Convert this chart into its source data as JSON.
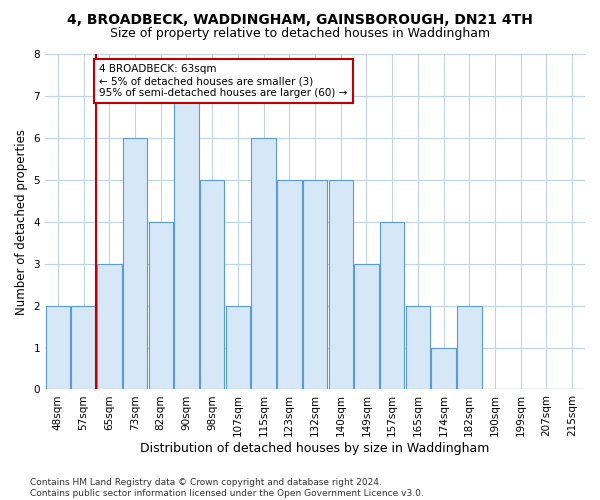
{
  "title": "4, BROADBECK, WADDINGHAM, GAINSBOROUGH, DN21 4TH",
  "subtitle": "Size of property relative to detached houses in Waddingham",
  "xlabel": "Distribution of detached houses by size in Waddingham",
  "ylabel": "Number of detached properties",
  "categories": [
    "48sqm",
    "57sqm",
    "65sqm",
    "73sqm",
    "82sqm",
    "90sqm",
    "98sqm",
    "107sqm",
    "115sqm",
    "123sqm",
    "132sqm",
    "140sqm",
    "149sqm",
    "157sqm",
    "165sqm",
    "174sqm",
    "182sqm",
    "190sqm",
    "199sqm",
    "207sqm",
    "215sqm"
  ],
  "values": [
    2,
    2,
    3,
    6,
    4,
    7,
    5,
    2,
    6,
    5,
    5,
    5,
    3,
    4,
    2,
    1,
    2,
    0,
    0,
    0,
    0
  ],
  "red_line_x": 1.5,
  "highlight_color": "#c00000",
  "bar_color": "#d6e8f7",
  "bar_edge_color": "#5b9bd5",
  "annotation_text": "4 BROADBECK: 63sqm\n← 5% of detached houses are smaller (3)\n95% of semi-detached houses are larger (60) →",
  "annotation_box_color": "#ffffff",
  "annotation_box_edge_color": "#c00000",
  "footer": "Contains HM Land Registry data © Crown copyright and database right 2024.\nContains public sector information licensed under the Open Government Licence v3.0.",
  "ylim": [
    0,
    8
  ],
  "yticks": [
    0,
    1,
    2,
    3,
    4,
    5,
    6,
    7,
    8
  ],
  "bg_color": "#ffffff",
  "grid_color": "#c0d4e8",
  "title_fontsize": 10,
  "subtitle_fontsize": 9,
  "xlabel_fontsize": 9,
  "ylabel_fontsize": 8.5,
  "tick_fontsize": 7.5,
  "annotation_fontsize": 7.5,
  "footer_fontsize": 6.5
}
